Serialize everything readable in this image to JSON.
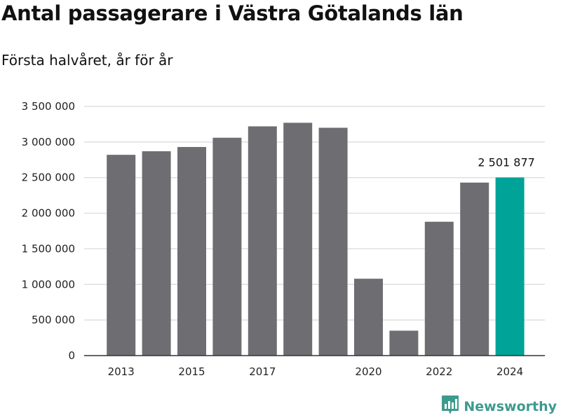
{
  "header": {
    "title": "Antal passagerare i Västra Götalands län",
    "subtitle": "Första halvåret, år för år"
  },
  "brand": {
    "name": "Newsworthy",
    "logo_icon": "newsworthy-chart-bubble-icon",
    "color": "#3d9a8e"
  },
  "colors": {
    "bar_default": "#6e6d72",
    "bar_highlight": "#00a398",
    "grid": "#d9d9d9",
    "axis": "#333333"
  },
  "chart_data": {
    "type": "bar",
    "title": "Antal passagerare i Västra Götalands län",
    "subtitle": "Första halvåret, år för år",
    "categories": [
      "2013",
      "2014",
      "2015",
      "2016",
      "2017",
      "2018",
      "2019",
      "2020",
      "2021",
      "2022",
      "2023",
      "2024"
    ],
    "values": [
      2820000,
      2870000,
      2930000,
      3060000,
      3220000,
      3270000,
      3200000,
      1080000,
      350000,
      1880000,
      2430000,
      2501877
    ],
    "x_tick_labels": [
      "2013",
      "",
      "2015",
      "",
      "2017",
      "",
      "",
      "2020",
      "",
      "2022",
      "",
      "2024"
    ],
    "y_ticks": [
      0,
      500000,
      1000000,
      1500000,
      2000000,
      2500000,
      3000000,
      3500000
    ],
    "y_tick_labels": [
      "0",
      "500 000",
      "1 000 000",
      "1 500 000",
      "2 000 000",
      "2 500 000",
      "3 000 000",
      "3 500 000"
    ],
    "ylim": [
      0,
      3500000
    ],
    "grid": true,
    "highlight_index": 11,
    "annotations": [
      {
        "category": "2024",
        "text": "2 501 877"
      }
    ],
    "xlabel": "",
    "ylabel": ""
  }
}
